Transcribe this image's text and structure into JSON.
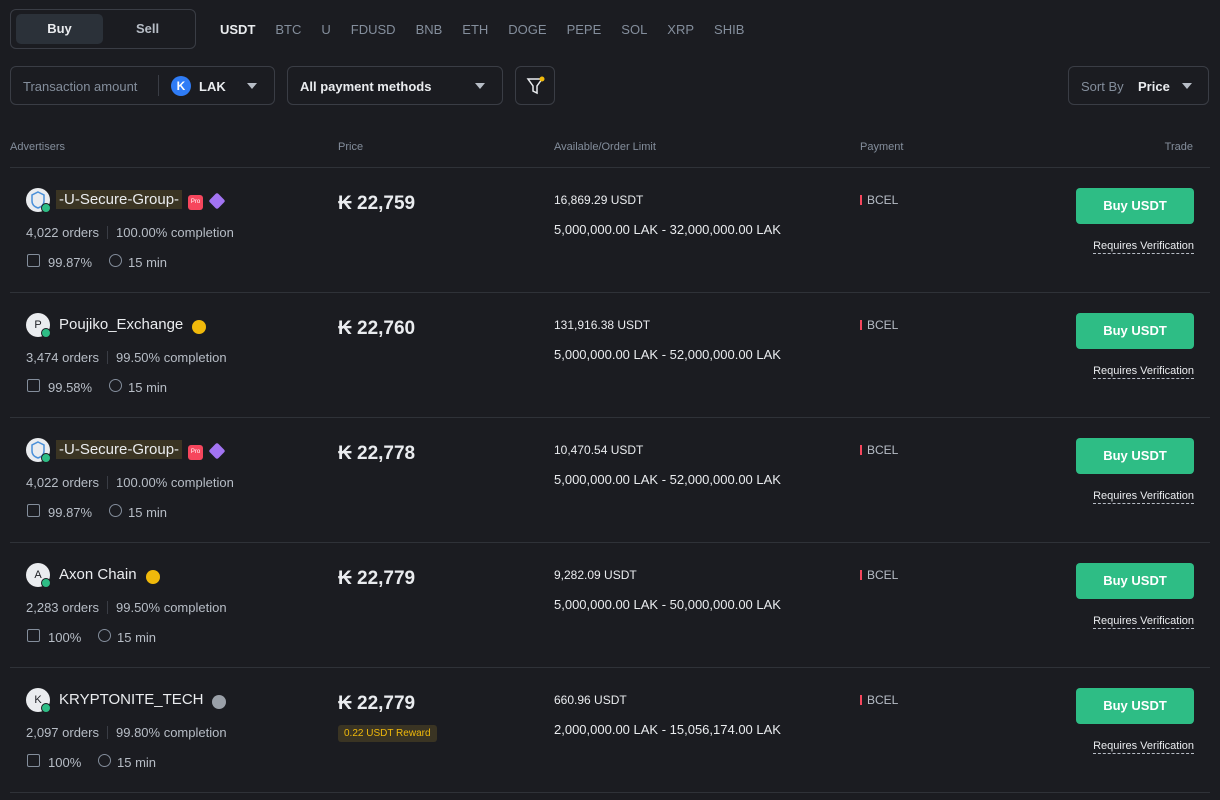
{
  "tabs": [
    "Buy",
    "Sell"
  ],
  "coins": [
    "USDT",
    "BTC",
    "U",
    "FDUSD",
    "BNB",
    "ETH",
    "DOGE",
    "PEPE",
    "SOL",
    "XRP",
    "SHIB"
  ],
  "filters": {
    "amount_label": "Transaction amount",
    "currency_icon": "K",
    "currency": "LAK",
    "payment": "All payment methods",
    "sort_label": "Sort By",
    "sort_value": "Price"
  },
  "columns": [
    "Advertisers",
    "Price",
    "Available/Order Limit",
    "Payment",
    "Trade"
  ],
  "rows": [
    {
      "name": "-U-Secure-Group-",
      "pro": "Pro",
      "orders": "4,022 orders",
      "completion": "100.00% completion",
      "rating": "99.87%",
      "time": "15 min",
      "price": "₭ 22,759",
      "available": "16,869.29 USDT",
      "limit": "5,000,000.00 LAK - 32,000,000.00 LAK",
      "payment": "BCEL",
      "button": "Buy USDT",
      "note": "Requires Verification"
    },
    {
      "avatar": "P",
      "name": "Poujiko_Exchange",
      "badge_color": "#f0b90b",
      "orders": "3,474 orders",
      "completion": "99.50% completion",
      "rating": "99.58%",
      "time": "15 min",
      "price": "₭ 22,760",
      "available": "131,916.38 USDT",
      "limit": "5,000,000.00 LAK - 52,000,000.00 LAK",
      "payment": "BCEL",
      "button": "Buy USDT",
      "note": "Requires Verification"
    },
    {
      "name": "-U-Secure-Group-",
      "pro": "Pro",
      "orders": "4,022 orders",
      "completion": "100.00% completion",
      "rating": "99.87%",
      "time": "15 min",
      "price": "₭ 22,778",
      "available": "10,470.54 USDT",
      "limit": "5,000,000.00 LAK - 52,000,000.00 LAK",
      "payment": "BCEL",
      "button": "Buy USDT",
      "note": "Requires Verification"
    },
    {
      "avatar": "A",
      "name": "Axon Chain",
      "badge_color": "#f0b90b",
      "orders": "2,283 orders",
      "completion": "99.50% completion",
      "rating": "100%",
      "time": "15 min",
      "price": "₭ 22,779",
      "available": "9,282.09 USDT",
      "limit": "5,000,000.00 LAK - 50,000,000.00 LAK",
      "payment": "BCEL",
      "button": "Buy USDT",
      "note": "Requires Verification"
    },
    {
      "avatar": "K",
      "name": "KRYPTONITE_TECH",
      "badge_color": "#9aa0a8",
      "orders": "2,097 orders",
      "completion": "99.80% completion",
      "rating": "100%",
      "time": "15 min",
      "price": "₭ 22,779",
      "reward": "0.22 USDT Reward",
      "available": "660.96 USDT",
      "limit": "2,000,000.00 LAK - 15,056,174.00 LAK",
      "payment": "BCEL",
      "button": "Buy USDT",
      "note": "Requires Verification"
    }
  ]
}
